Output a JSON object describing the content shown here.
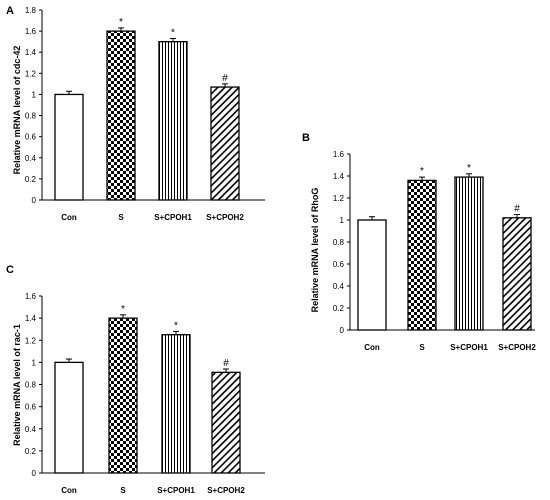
{
  "chart_data": [
    {
      "type": "bar",
      "panel": "A",
      "ylabel": "Relative mRNA level of cdc-42",
      "categories": [
        "Con",
        "S",
        "S+CPOH1",
        "S+CPOH2"
      ],
      "values": [
        1.0,
        1.6,
        1.5,
        1.07
      ],
      "errors": [
        0.03,
        0.03,
        0.03,
        0.03
      ],
      "annotations": [
        "",
        "*",
        "*",
        "#"
      ],
      "patterns": [
        "none",
        "checker",
        "vertical",
        "diagonal"
      ],
      "ylim": [
        0,
        1.8
      ],
      "yticks": [
        "0",
        "0.2",
        "0.4",
        "0.6",
        "0.8",
        "1",
        "1.2",
        "1.4",
        "1.6",
        "1.8"
      ],
      "grid": false
    },
    {
      "type": "bar",
      "panel": "B",
      "ylabel": "Relative mRNA level of RhoG",
      "categories": [
        "Con",
        "S",
        "S+CPOH1",
        "S+CPOH2"
      ],
      "values": [
        1.0,
        1.36,
        1.39,
        1.02
      ],
      "errors": [
        0.03,
        0.03,
        0.03,
        0.03
      ],
      "annotations": [
        "",
        "*",
        "*",
        "#"
      ],
      "patterns": [
        "none",
        "checker",
        "vertical",
        "diagonal"
      ],
      "ylim": [
        0,
        1.6
      ],
      "yticks": [
        "0",
        "0.2",
        "0.4",
        "0.6",
        "0.8",
        "1",
        "1.2",
        "1.4",
        "1.6"
      ],
      "grid": false
    },
    {
      "type": "bar",
      "panel": "C",
      "ylabel": "Relative mRNA level of rac-1",
      "categories": [
        "Con",
        "S",
        "S+CPOH1",
        "S+CPOH2"
      ],
      "values": [
        1.0,
        1.4,
        1.25,
        0.91
      ],
      "errors": [
        0.03,
        0.03,
        0.03,
        0.03
      ],
      "annotations": [
        "",
        "*",
        "*",
        "#"
      ],
      "patterns": [
        "none",
        "checker",
        "vertical",
        "diagonal"
      ],
      "ylim": [
        0,
        1.6
      ],
      "yticks": [
        "0",
        "0.2",
        "0.4",
        "0.6",
        "0.8",
        "1",
        "1.2",
        "1.4",
        "1.6"
      ],
      "grid": false
    }
  ]
}
